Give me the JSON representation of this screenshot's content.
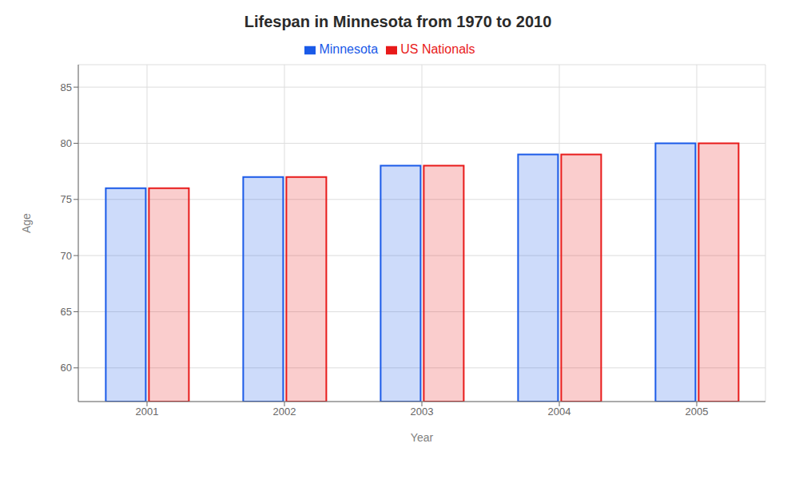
{
  "chart_data": {
    "type": "bar",
    "title": "Lifespan in Minnesota from 1970 to 2010",
    "xlabel": "Year",
    "ylabel": "Age",
    "categories": [
      "2001",
      "2002",
      "2003",
      "2004",
      "2005"
    ],
    "series": [
      {
        "name": "Minnesota",
        "color": "#1a5ae8",
        "values": [
          76,
          77,
          78,
          79,
          80
        ]
      },
      {
        "name": "US Nationals",
        "color": "#e81a1a",
        "values": [
          76,
          77,
          78,
          79,
          80
        ]
      }
    ],
    "ylim": [
      57,
      87
    ],
    "yticks": [
      60,
      65,
      70,
      75,
      80,
      85
    ],
    "grid": true,
    "legend": "top"
  }
}
